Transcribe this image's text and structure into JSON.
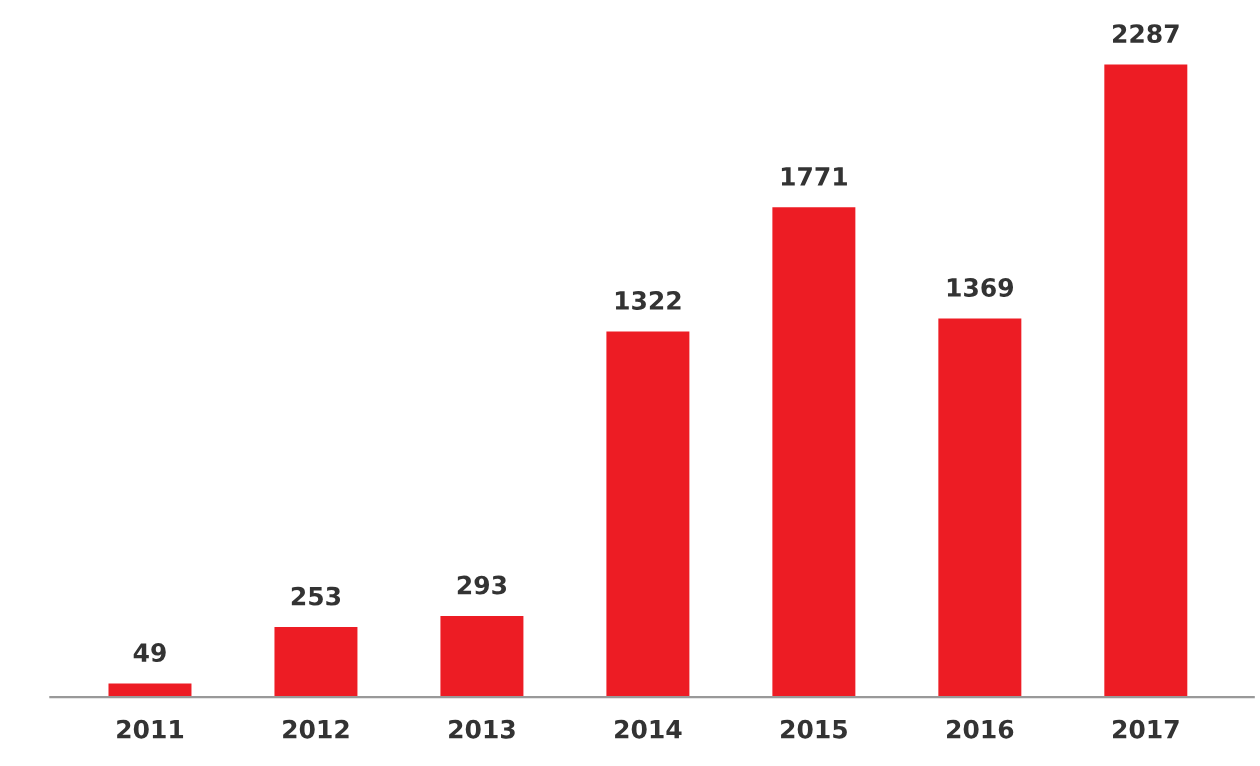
{
  "chart_data": {
    "type": "bar",
    "categories": [
      "2011",
      "2012",
      "2013",
      "2014",
      "2015",
      "2016",
      "2017"
    ],
    "values": [
      49,
      253,
      293,
      1322,
      1771,
      1369,
      2287
    ],
    "color": "#ed1c24",
    "data_labels": true,
    "grid": false,
    "legend": false
  }
}
